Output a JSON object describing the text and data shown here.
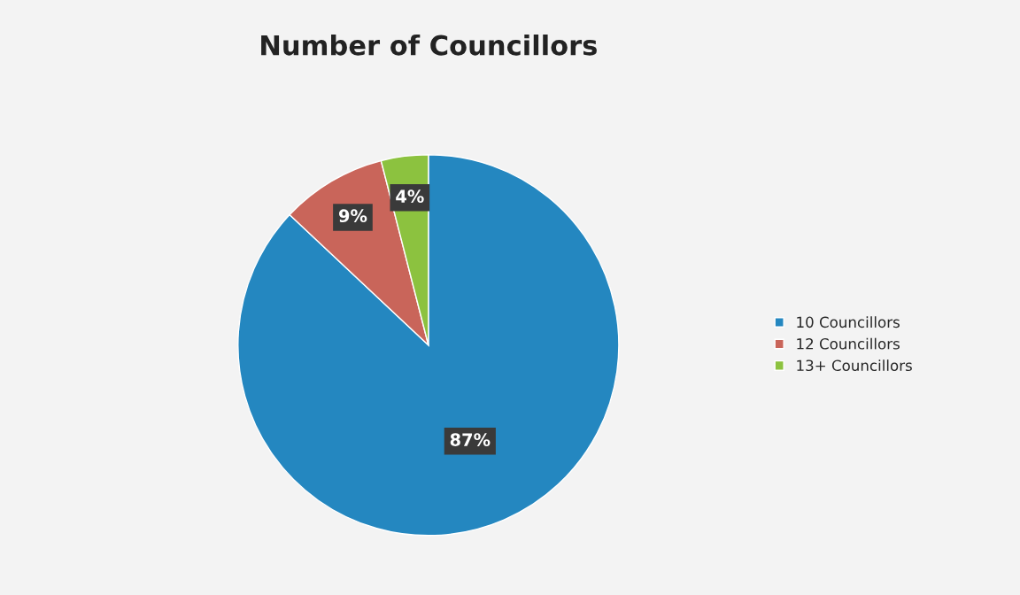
{
  "chart_data": {
    "type": "pie",
    "title": "Number of Councillors",
    "categories": [
      "10 Councillors",
      "12 Councillors",
      "13+ Councillors"
    ],
    "values": [
      87,
      9,
      4
    ],
    "value_labels": [
      "87%",
      "9%",
      "4%"
    ],
    "colors": [
      "#2487c0",
      "#c9655a",
      "#8cc23f"
    ],
    "legend": "right"
  }
}
